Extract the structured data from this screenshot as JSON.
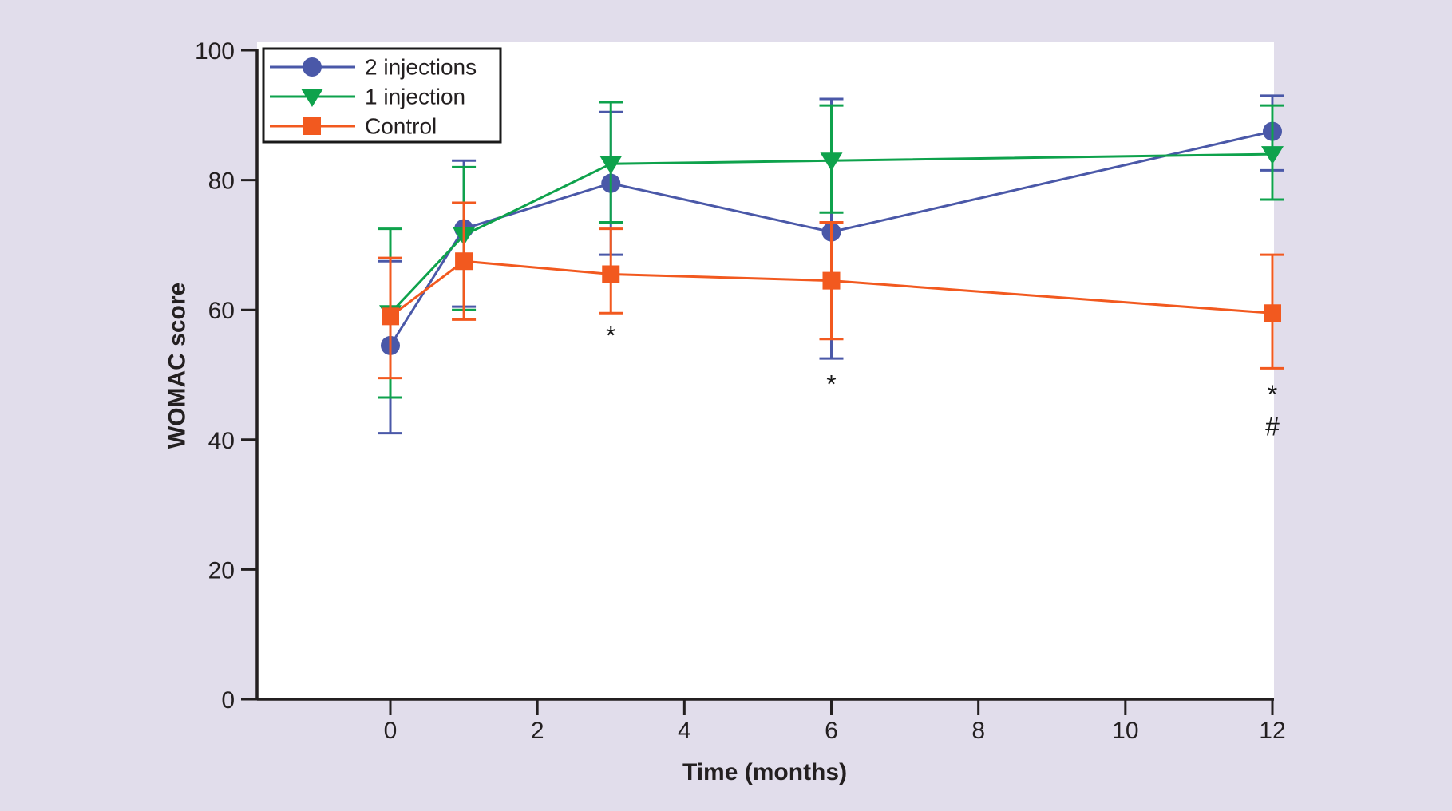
{
  "colors": {
    "background": "#e1ddeb",
    "plot_background": "#ffffff",
    "axis": "#231f20",
    "legend_border": "#1a1a1a",
    "annotation": "#1a1a1a"
  },
  "chart_data": {
    "type": "line",
    "title": "",
    "xlabel": "Time (months)",
    "ylabel": "WOMAC score",
    "x_ticks": [
      0,
      2,
      4,
      6,
      8,
      10,
      12
    ],
    "y_ticks": [
      0,
      20,
      40,
      60,
      80,
      100
    ],
    "xlim": [
      -1.82,
      12
    ],
    "ylim": [
      0,
      100
    ],
    "grid": false,
    "legend_position": "top-left",
    "error_bars": true,
    "series": [
      {
        "name": "2 injections",
        "color": "#4a58a8",
        "marker": "circle",
        "x": [
          0,
          1,
          3,
          6,
          12
        ],
        "y": [
          54.5,
          72.5,
          79.5,
          72,
          87.5
        ],
        "err_hi": [
          67.5,
          83,
          90.5,
          92.5,
          93
        ],
        "err_lo": [
          41,
          60.5,
          68.5,
          52.5,
          81.5
        ]
      },
      {
        "name": "1 injection",
        "color": "#0ea24c",
        "marker": "triangle-down",
        "x": [
          0,
          1,
          3,
          6,
          12
        ],
        "y": [
          59.5,
          71.5,
          82.5,
          83,
          84
        ],
        "err_hi": [
          72.5,
          82,
          92,
          91.5,
          91.5
        ],
        "err_lo": [
          46.5,
          60,
          73.5,
          75,
          77
        ]
      },
      {
        "name": "Control",
        "color": "#f2591f",
        "marker": "square",
        "x": [
          0,
          1,
          3,
          6,
          12
        ],
        "y": [
          59,
          67.5,
          65.5,
          64.5,
          59.5
        ],
        "err_hi": [
          68,
          76.5,
          72.5,
          73.5,
          68.5
        ],
        "err_lo": [
          49.5,
          58.5,
          59.5,
          55.5,
          51
        ]
      }
    ],
    "annotations": [
      {
        "text": "*",
        "x": 3,
        "y": 56.5
      },
      {
        "text": "*",
        "x": 6,
        "y": 49
      },
      {
        "text": "*",
        "x": 12,
        "y": 47.5
      },
      {
        "text": "#",
        "x": 12,
        "y": 42
      }
    ]
  }
}
